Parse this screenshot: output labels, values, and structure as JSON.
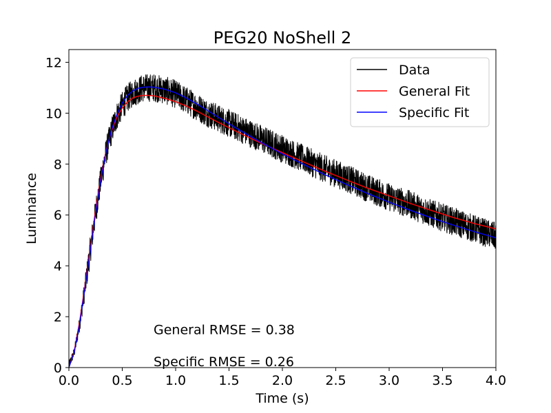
{
  "chart_data": {
    "type": "line",
    "title": "PEG20 NoShell 2",
    "xlabel": "Time (s)",
    "ylabel": "Luminance",
    "xlim": [
      0,
      4
    ],
    "ylim": [
      0,
      12.5
    ],
    "xticks": [
      0.0,
      0.5,
      1.0,
      1.5,
      2.0,
      2.5,
      3.0,
      3.5,
      4.0
    ],
    "xtick_labels": [
      "0.0",
      "0.5",
      "1.0",
      "1.5",
      "2.0",
      "2.5",
      "3.0",
      "3.5",
      "4.0"
    ],
    "yticks": [
      0,
      2,
      4,
      6,
      8,
      10,
      12
    ],
    "ytick_labels": [
      "0",
      "2",
      "4",
      "6",
      "8",
      "10",
      "12"
    ],
    "grid": false,
    "legend_position": "top-right",
    "series": [
      {
        "name": "Data",
        "color": "#000000",
        "style": "noisy",
        "noise_amplitude": 0.55,
        "x": [
          0.0,
          0.05,
          0.1,
          0.15,
          0.2,
          0.25,
          0.3,
          0.35,
          0.4,
          0.45,
          0.5,
          0.55,
          0.6,
          0.65,
          0.7,
          0.75,
          0.8,
          0.9,
          1.0,
          1.1,
          1.2,
          1.3,
          1.4,
          1.5,
          1.6,
          1.8,
          2.0,
          2.2,
          2.4,
          2.6,
          2.8,
          3.0,
          3.2,
          3.4,
          3.6,
          3.8,
          4.0
        ],
        "y": [
          0.1,
          0.6,
          1.7,
          3.1,
          4.6,
          6.1,
          7.4,
          8.5,
          9.3,
          9.9,
          10.3,
          10.6,
          10.8,
          10.9,
          11.0,
          11.0,
          11.0,
          10.9,
          10.75,
          10.5,
          10.25,
          10.0,
          9.8,
          9.6,
          9.4,
          9.0,
          8.6,
          8.2,
          7.8,
          7.45,
          7.05,
          6.7,
          6.4,
          6.05,
          5.75,
          5.45,
          5.15
        ]
      },
      {
        "name": "General Fit",
        "color": "#ff0000",
        "style": "smooth",
        "x": [
          0.0,
          0.05,
          0.1,
          0.15,
          0.2,
          0.25,
          0.3,
          0.35,
          0.4,
          0.45,
          0.5,
          0.55,
          0.6,
          0.65,
          0.7,
          0.75,
          0.8,
          0.9,
          1.0,
          1.1,
          1.2,
          1.3,
          1.4,
          1.5,
          1.6,
          1.8,
          2.0,
          2.2,
          2.4,
          2.6,
          2.8,
          3.0,
          3.2,
          3.4,
          3.6,
          3.8,
          4.0
        ],
        "y": [
          0.0,
          0.65,
          1.8,
          3.2,
          4.7,
          6.2,
          7.5,
          8.55,
          9.3,
          9.85,
          10.2,
          10.45,
          10.6,
          10.67,
          10.7,
          10.7,
          10.68,
          10.58,
          10.45,
          10.28,
          10.08,
          9.86,
          9.64,
          9.43,
          9.22,
          8.82,
          8.45,
          8.08,
          7.72,
          7.38,
          7.05,
          6.75,
          6.45,
          6.17,
          5.9,
          5.66,
          5.45
        ]
      },
      {
        "name": "Specific Fit",
        "color": "#0000ff",
        "style": "smooth",
        "x": [
          0.0,
          0.05,
          0.1,
          0.15,
          0.2,
          0.25,
          0.3,
          0.35,
          0.4,
          0.45,
          0.5,
          0.55,
          0.6,
          0.65,
          0.7,
          0.75,
          0.8,
          0.9,
          1.0,
          1.1,
          1.2,
          1.3,
          1.4,
          1.5,
          1.6,
          1.8,
          2.0,
          2.2,
          2.4,
          2.6,
          2.8,
          3.0,
          3.2,
          3.4,
          3.6,
          3.8,
          4.0
        ],
        "y": [
          0.0,
          0.6,
          1.7,
          3.1,
          4.6,
          6.05,
          7.4,
          8.5,
          9.35,
          9.95,
          10.4,
          10.7,
          10.88,
          10.98,
          11.02,
          11.03,
          11.02,
          10.94,
          10.8,
          10.6,
          10.36,
          10.1,
          9.84,
          9.58,
          9.33,
          8.85,
          8.4,
          7.98,
          7.58,
          7.2,
          6.84,
          6.5,
          6.18,
          5.88,
          5.6,
          5.34,
          5.1
        ]
      }
    ],
    "annotations": [
      {
        "text": "General RMSE = 0.38",
        "x": 0.8,
        "y": 1.5
      },
      {
        "text": "Specific RMSE = 0.26",
        "x": 0.8,
        "y": 0.25
      }
    ]
  }
}
